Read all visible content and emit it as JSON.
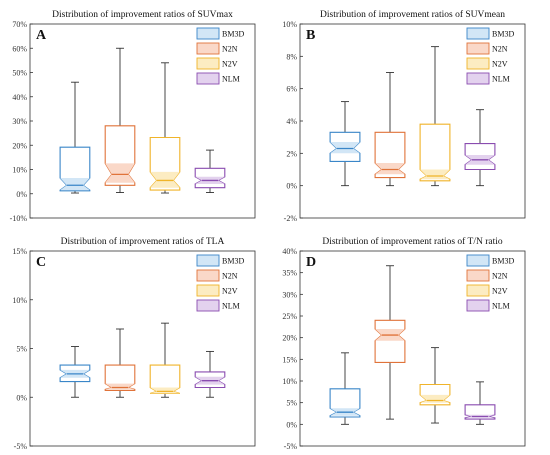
{
  "chart_data": [
    {
      "type": "box",
      "letter": "A",
      "title": "Distribution of improvement ratios of SUVmax",
      "ylim": [
        -0.1,
        0.7
      ],
      "yticks": [
        -0.1,
        0,
        0.1,
        0.2,
        0.3,
        0.4,
        0.5,
        0.6,
        0.7
      ],
      "ytick_labels": [
        "-10%",
        "0%",
        "10%",
        "20%",
        "30%",
        "40%",
        "50%",
        "60%",
        "70%"
      ],
      "grid": false,
      "legend_position": "top-right",
      "series": [
        {
          "name": "BM3D",
          "min": 0.003,
          "q1": 0.012,
          "median": 0.035,
          "q3": 0.192,
          "max": 0.46,
          "notch_low": 0.015,
          "notch_high": 0.065
        },
        {
          "name": "N2N",
          "min": 0.005,
          "q1": 0.035,
          "median": 0.08,
          "q3": 0.28,
          "max": 0.6,
          "notch_low": 0.045,
          "notch_high": 0.125
        },
        {
          "name": "N2V",
          "min": 0.003,
          "q1": 0.015,
          "median": 0.055,
          "q3": 0.232,
          "max": 0.54,
          "notch_low": 0.025,
          "notch_high": 0.09
        },
        {
          "name": "NLM",
          "min": 0.005,
          "q1": 0.025,
          "median": 0.055,
          "q3": 0.105,
          "max": 0.18,
          "notch_low": 0.04,
          "notch_high": 0.07
        }
      ]
    },
    {
      "type": "box",
      "letter": "B",
      "title": "Distribution of improvement ratios of SUVmean",
      "ylim": [
        -0.02,
        0.1
      ],
      "yticks": [
        -0.02,
        0,
        0.02,
        0.04,
        0.06,
        0.08,
        0.1
      ],
      "ytick_labels": [
        "-2%",
        "0%",
        "2%",
        "4%",
        "6%",
        "8%",
        "10%"
      ],
      "grid": false,
      "legend_position": "top-right",
      "series": [
        {
          "name": "BM3D",
          "min": 0.0,
          "q1": 0.015,
          "median": 0.023,
          "q3": 0.033,
          "max": 0.052,
          "notch_low": 0.02,
          "notch_high": 0.027
        },
        {
          "name": "N2N",
          "min": 0.0,
          "q1": 0.005,
          "median": 0.01,
          "q3": 0.033,
          "max": 0.07,
          "notch_low": 0.007,
          "notch_high": 0.014
        },
        {
          "name": "N2V",
          "min": 0.0,
          "q1": 0.003,
          "median": 0.006,
          "q3": 0.038,
          "max": 0.086,
          "notch_low": 0.004,
          "notch_high": 0.01
        },
        {
          "name": "NLM",
          "min": 0.0,
          "q1": 0.01,
          "median": 0.016,
          "q3": 0.026,
          "max": 0.047,
          "notch_low": 0.013,
          "notch_high": 0.019
        }
      ]
    },
    {
      "type": "box",
      "letter": "C",
      "title": "Distribution of improvement ratios of TLA",
      "ylim": [
        -0.05,
        0.15
      ],
      "yticks": [
        -0.05,
        0,
        0.05,
        0.1,
        0.15
      ],
      "ytick_labels": [
        "-5%",
        "0%",
        "5%",
        "10%",
        "15%"
      ],
      "grid": false,
      "legend_position": "top-right",
      "series": [
        {
          "name": "BM3D",
          "min": 0.0,
          "q1": 0.016,
          "median": 0.024,
          "q3": 0.033,
          "max": 0.052,
          "notch_low": 0.02,
          "notch_high": 0.028
        },
        {
          "name": "N2N",
          "min": 0.0,
          "q1": 0.007,
          "median": 0.01,
          "q3": 0.033,
          "max": 0.07,
          "notch_low": 0.008,
          "notch_high": 0.014
        },
        {
          "name": "N2V",
          "min": 0.0,
          "q1": 0.004,
          "median": 0.006,
          "q3": 0.033,
          "max": 0.076,
          "notch_low": 0.004,
          "notch_high": 0.01
        },
        {
          "name": "NLM",
          "min": 0.0,
          "q1": 0.01,
          "median": 0.017,
          "q3": 0.026,
          "max": 0.047,
          "notch_low": 0.013,
          "notch_high": 0.021
        }
      ]
    },
    {
      "type": "box",
      "letter": "D",
      "title": "Distribution of improvement ratios of T/N ratio",
      "ylim": [
        -0.05,
        0.4
      ],
      "yticks": [
        -0.05,
        0,
        0.05,
        0.1,
        0.15,
        0.2,
        0.25,
        0.3,
        0.35,
        0.4
      ],
      "ytick_labels": [
        "-5%",
        "0%",
        "5%",
        "10%",
        "15%",
        "20%",
        "25%",
        "30%",
        "35%",
        "40%"
      ],
      "grid": false,
      "legend_position": "top-right",
      "series": [
        {
          "name": "BM3D",
          "min": 0.0,
          "q1": 0.017,
          "median": 0.028,
          "q3": 0.082,
          "max": 0.165,
          "notch_low": 0.02,
          "notch_high": 0.037
        },
        {
          "name": "N2N",
          "min": 0.012,
          "q1": 0.143,
          "median": 0.206,
          "q3": 0.24,
          "max": 0.366,
          "notch_low": 0.193,
          "notch_high": 0.22
        },
        {
          "name": "N2V",
          "min": 0.003,
          "q1": 0.045,
          "median": 0.055,
          "q3": 0.092,
          "max": 0.177,
          "notch_low": 0.05,
          "notch_high": 0.068
        },
        {
          "name": "NLM",
          "min": 0.0,
          "q1": 0.012,
          "median": 0.018,
          "q3": 0.045,
          "max": 0.098,
          "notch_low": 0.015,
          "notch_high": 0.022
        }
      ]
    }
  ],
  "series_colors": {
    "BM3D": {
      "stroke": "#3a86c8",
      "fill": "#d2e6f6"
    },
    "N2N": {
      "stroke": "#e0733a",
      "fill": "#fad8c8"
    },
    "N2V": {
      "stroke": "#f0b42a",
      "fill": "#fcecc2"
    },
    "NLM": {
      "stroke": "#8a4cb0",
      "fill": "#e3d2ee"
    }
  }
}
